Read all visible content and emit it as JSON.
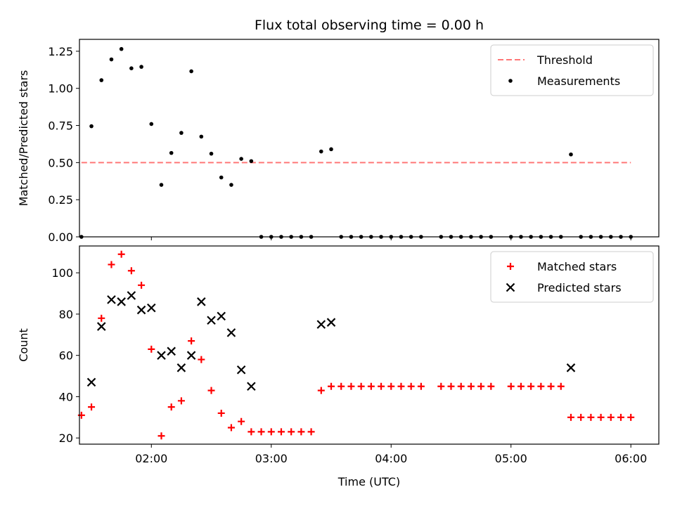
{
  "chart_data": {
    "type": "scatter",
    "title": "Flux total observing time = 0.00 h",
    "xlabel": "Time (UTC)",
    "x_unit": "hours UTC",
    "xlim": [
      "01:24",
      "06:14"
    ],
    "xticks": [
      {
        "value": "02:00",
        "label": "02:00"
      },
      {
        "value": "03:00",
        "label": "03:00"
      },
      {
        "value": "04:00",
        "label": "04:00"
      },
      {
        "value": "05:00",
        "label": "05:00"
      },
      {
        "value": "06:00",
        "label": "06:00"
      }
    ],
    "panels": [
      {
        "id": "ratio",
        "ylabel": "Matched/Predicted stars",
        "ylim": [
          0.0,
          1.33
        ],
        "yticks": [
          "0.00",
          "0.25",
          "0.50",
          "0.75",
          "1.00",
          "1.25"
        ],
        "legend_position": "top-right",
        "threshold": {
          "name": "Threshold",
          "value": 0.5,
          "x_range": [
            "01:25",
            "06:00"
          ],
          "color": "#ff7777",
          "style": "dashed"
        },
        "series": [
          {
            "name": "Measurements",
            "marker": "dot",
            "color": "#000000",
            "points": [
              [
                "01:25",
                0.0
              ],
              [
                "01:30",
                0.745
              ],
              [
                "01:35",
                1.055
              ],
              [
                "01:40",
                1.195
              ],
              [
                "01:45",
                1.265
              ],
              [
                "01:50",
                1.135
              ],
              [
                "01:55",
                1.145
              ],
              [
                "02:00",
                0.76
              ],
              [
                "02:05",
                0.35
              ],
              [
                "02:10",
                0.565
              ],
              [
                "02:15",
                0.7
              ],
              [
                "02:20",
                1.115
              ],
              [
                "02:25",
                0.675
              ],
              [
                "02:30",
                0.56
              ],
              [
                "02:35",
                0.4
              ],
              [
                "02:40",
                0.35
              ],
              [
                "02:45",
                0.525
              ],
              [
                "02:50",
                0.51
              ],
              [
                "02:55",
                0.0
              ],
              [
                "03:00",
                0.0
              ],
              [
                "03:05",
                0.0
              ],
              [
                "03:10",
                0.0
              ],
              [
                "03:15",
                0.0
              ],
              [
                "03:20",
                0.0
              ],
              [
                "03:25",
                0.575
              ],
              [
                "03:30",
                0.59
              ],
              [
                "03:35",
                0.0
              ],
              [
                "03:40",
                0.0
              ],
              [
                "03:45",
                0.0
              ],
              [
                "03:50",
                0.0
              ],
              [
                "03:55",
                0.0
              ],
              [
                "04:00",
                0.0
              ],
              [
                "04:05",
                0.0
              ],
              [
                "04:10",
                0.0
              ],
              [
                "04:15",
                0.0
              ],
              [
                "04:25",
                0.0
              ],
              [
                "04:30",
                0.0
              ],
              [
                "04:35",
                0.0
              ],
              [
                "04:40",
                0.0
              ],
              [
                "04:45",
                0.0
              ],
              [
                "04:50",
                0.0
              ],
              [
                "05:00",
                0.0
              ],
              [
                "05:05",
                0.0
              ],
              [
                "05:10",
                0.0
              ],
              [
                "05:15",
                0.0
              ],
              [
                "05:20",
                0.0
              ],
              [
                "05:25",
                0.0
              ],
              [
                "05:30",
                0.555
              ],
              [
                "05:35",
                0.0
              ],
              [
                "05:40",
                0.0
              ],
              [
                "05:45",
                0.0
              ],
              [
                "05:50",
                0.0
              ],
              [
                "05:55",
                0.0
              ],
              [
                "06:00",
                0.0
              ]
            ]
          }
        ]
      },
      {
        "id": "count",
        "ylabel": "Count",
        "ylim": [
          17,
          113
        ],
        "yticks": [
          "20",
          "40",
          "60",
          "80",
          "100"
        ],
        "legend_position": "top-right",
        "series": [
          {
            "name": "Matched stars",
            "marker": "plus",
            "color": "#ff0000",
            "points": [
              [
                "01:25",
                31
              ],
              [
                "01:30",
                35
              ],
              [
                "01:35",
                78
              ],
              [
                "01:40",
                104
              ],
              [
                "01:45",
                109
              ],
              [
                "01:50",
                101
              ],
              [
                "01:55",
                94
              ],
              [
                "02:00",
                63
              ],
              [
                "02:05",
                21
              ],
              [
                "02:10",
                35
              ],
              [
                "02:15",
                38
              ],
              [
                "02:20",
                67
              ],
              [
                "02:25",
                58
              ],
              [
                "02:30",
                43
              ],
              [
                "02:35",
                32
              ],
              [
                "02:40",
                25
              ],
              [
                "02:45",
                28
              ],
              [
                "02:50",
                23
              ],
              [
                "02:55",
                23
              ],
              [
                "03:00",
                23
              ],
              [
                "03:05",
                23
              ],
              [
                "03:10",
                23
              ],
              [
                "03:15",
                23
              ],
              [
                "03:20",
                23
              ],
              [
                "03:25",
                43
              ],
              [
                "03:30",
                45
              ],
              [
                "03:35",
                45
              ],
              [
                "03:40",
                45
              ],
              [
                "03:45",
                45
              ],
              [
                "03:50",
                45
              ],
              [
                "03:55",
                45
              ],
              [
                "04:00",
                45
              ],
              [
                "04:05",
                45
              ],
              [
                "04:10",
                45
              ],
              [
                "04:15",
                45
              ],
              [
                "04:25",
                45
              ],
              [
                "04:30",
                45
              ],
              [
                "04:35",
                45
              ],
              [
                "04:40",
                45
              ],
              [
                "04:45",
                45
              ],
              [
                "04:50",
                45
              ],
              [
                "05:00",
                45
              ],
              [
                "05:05",
                45
              ],
              [
                "05:10",
                45
              ],
              [
                "05:15",
                45
              ],
              [
                "05:20",
                45
              ],
              [
                "05:25",
                45
              ],
              [
                "05:30",
                30
              ],
              [
                "05:35",
                30
              ],
              [
                "05:40",
                30
              ],
              [
                "05:45",
                30
              ],
              [
                "05:50",
                30
              ],
              [
                "05:55",
                30
              ],
              [
                "06:00",
                30
              ]
            ]
          },
          {
            "name": "Predicted stars",
            "marker": "x",
            "color": "#000000",
            "points": [
              [
                "01:30",
                47
              ],
              [
                "01:35",
                74
              ],
              [
                "01:40",
                87
              ],
              [
                "01:45",
                86
              ],
              [
                "01:50",
                89
              ],
              [
                "01:55",
                82
              ],
              [
                "02:00",
                83
              ],
              [
                "02:05",
                60
              ],
              [
                "02:10",
                62
              ],
              [
                "02:15",
                54
              ],
              [
                "02:20",
                60
              ],
              [
                "02:25",
                86
              ],
              [
                "02:30",
                77
              ],
              [
                "02:35",
                79
              ],
              [
                "02:40",
                71
              ],
              [
                "02:45",
                53
              ],
              [
                "02:50",
                45
              ],
              [
                "03:25",
                75
              ],
              [
                "03:30",
                76
              ],
              [
                "05:30",
                54
              ]
            ]
          }
        ]
      }
    ]
  }
}
